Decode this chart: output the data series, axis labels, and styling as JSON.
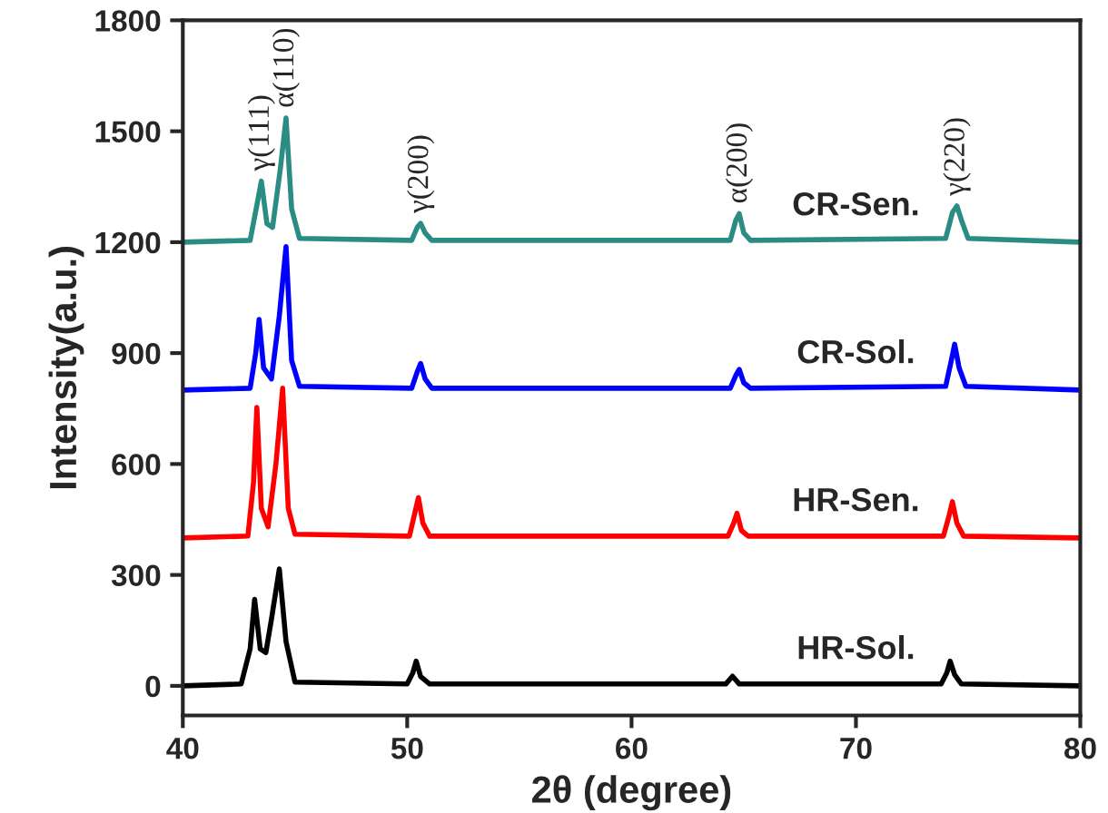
{
  "chart_data": {
    "type": "line",
    "xlabel": "2θ (degree)",
    "ylabel": "Intensity(a.u.)",
    "xlim": [
      40,
      80
    ],
    "xticks": [
      40,
      50,
      60,
      70,
      80
    ],
    "ylim": [
      -80,
      1800
    ],
    "yticks": [
      0,
      300,
      600,
      900,
      1200,
      1500,
      1800
    ],
    "grid": false,
    "legend": false,
    "marker": "none",
    "line_style": "solid",
    "series": [
      {
        "name": "HR-Sol.",
        "color": "#000000",
        "x": [
          40,
          42.6,
          43.0,
          43.2,
          43.45,
          43.7,
          43.95,
          44.3,
          44.6,
          45.0,
          50.0,
          50.25,
          50.4,
          50.6,
          51.0,
          64.2,
          64.5,
          64.8,
          73.8,
          74.05,
          74.2,
          74.4,
          74.7,
          80
        ],
        "values": [
          0,
          5,
          100,
          234,
          100,
          90,
          180,
          316,
          120,
          10,
          5,
          35,
          67,
          25,
          5,
          5,
          26,
          5,
          5,
          35,
          67,
          30,
          5,
          0
        ]
      },
      {
        "name": "HR-Sen.",
        "color": "#ff0000",
        "x": [
          40,
          42.9,
          43.15,
          43.3,
          43.5,
          43.8,
          44.15,
          44.45,
          44.7,
          45.0,
          50.1,
          50.35,
          50.5,
          50.7,
          51.0,
          64.3,
          64.55,
          64.7,
          64.9,
          65.2,
          73.9,
          74.15,
          74.3,
          74.5,
          74.8,
          80
        ],
        "values": [
          400,
          405,
          550,
          753,
          480,
          430,
          600,
          805,
          480,
          410,
          405,
          470,
          509,
          440,
          405,
          405,
          440,
          467,
          420,
          405,
          405,
          460,
          498,
          440,
          405,
          400
        ]
      },
      {
        "name": "CR-Sol.",
        "color": "#0000ff",
        "x": [
          40,
          43.0,
          43.25,
          43.4,
          43.6,
          43.95,
          44.3,
          44.6,
          44.85,
          45.2,
          50.2,
          50.45,
          50.6,
          50.8,
          51.1,
          64.4,
          64.65,
          64.8,
          65.0,
          65.3,
          74.0,
          74.25,
          74.4,
          74.6,
          74.9,
          80
        ],
        "values": [
          800,
          805,
          900,
          991,
          860,
          830,
          1000,
          1188,
          880,
          810,
          805,
          850,
          872,
          830,
          805,
          805,
          840,
          856,
          820,
          805,
          810,
          880,
          924,
          860,
          810,
          800
        ]
      },
      {
        "name": "CR-Sen.",
        "color": "#2a8c82",
        "x": [
          40,
          43.0,
          43.3,
          43.5,
          43.75,
          44.0,
          44.35,
          44.6,
          44.85,
          45.2,
          50.2,
          50.45,
          50.6,
          50.8,
          51.1,
          64.4,
          64.65,
          64.8,
          65.0,
          65.3,
          74.0,
          74.3,
          74.5,
          74.7,
          75.0,
          80
        ],
        "values": [
          1200,
          1205,
          1300,
          1365,
          1250,
          1240,
          1400,
          1536,
          1290,
          1210,
          1205,
          1240,
          1251,
          1225,
          1205,
          1205,
          1260,
          1277,
          1225,
          1205,
          1210,
          1280,
          1298,
          1260,
          1210,
          1200
        ]
      }
    ],
    "annotations": [
      {
        "text": "γ(111)",
        "x": 43.5,
        "y": 1365
      },
      {
        "text": "α(110)",
        "x": 44.6,
        "y": 1536
      },
      {
        "text": "γ(200)",
        "x": 50.6,
        "y": 1251
      },
      {
        "text": "α(200)",
        "x": 64.8,
        "y": 1277
      },
      {
        "text": "γ(220)",
        "x": 74.5,
        "y": 1298
      }
    ]
  }
}
